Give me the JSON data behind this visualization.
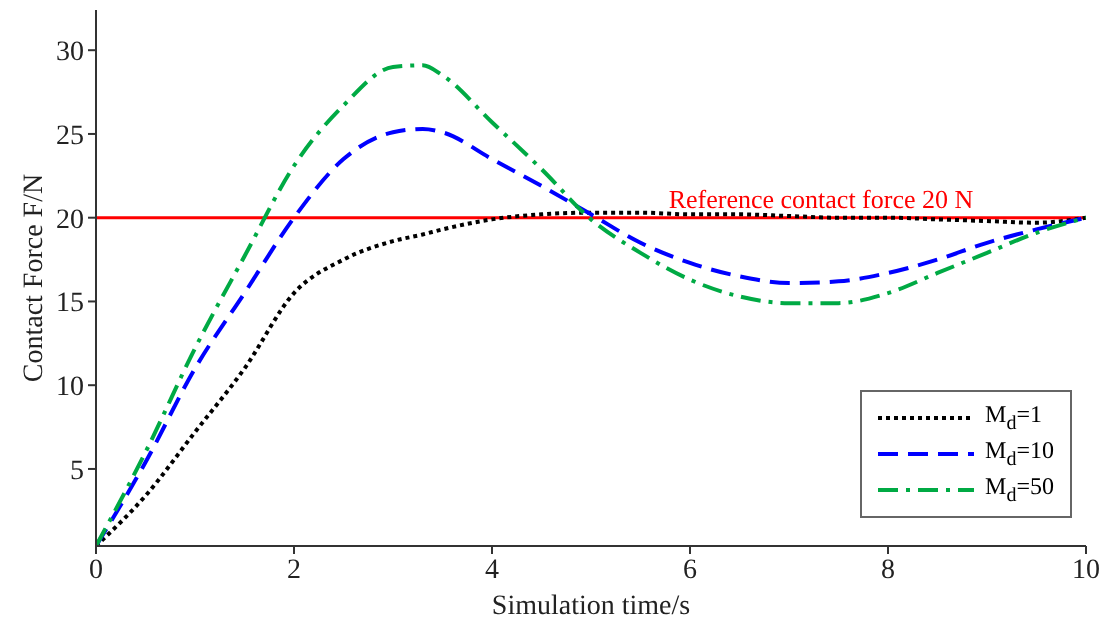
{
  "chart_data": {
    "type": "line",
    "xlabel": "Simulation time/s",
    "ylabel": "Contact Force F/N",
    "xlim": [
      0,
      10
    ],
    "xticks": [
      0,
      2,
      4,
      6,
      8,
      10
    ],
    "ylim": [
      0.4,
      32.4
    ],
    "yticks": [
      5,
      10,
      15,
      20,
      25,
      30
    ],
    "grid": false,
    "legend": "bottom right",
    "marker": "none",
    "x": [
      0,
      0.5,
      1,
      1.5,
      2,
      2.5,
      3,
      3.3,
      3.5,
      4,
      4.5,
      5,
      5.5,
      6,
      6.5,
      7,
      7.5,
      8,
      8.5,
      9,
      9.5,
      10
    ],
    "series": [
      {
        "name": "M$_{d}$=1",
        "color": "#000000",
        "line_style": "dotted",
        "values": [
          0.4,
          3.4,
          7.2,
          11.0,
          15.5,
          17.5,
          18.6,
          19.0,
          19.3,
          19.9,
          20.2,
          20.3,
          20.3,
          20.2,
          20.2,
          20.1,
          20.0,
          20.0,
          19.9,
          19.8,
          19.7,
          20.0
        ]
      },
      {
        "name": "M$_{d}$=10",
        "color": "#0000ff",
        "line_style": "dashed",
        "values": [
          0.4,
          5.4,
          11.0,
          15.5,
          20.0,
          23.5,
          25.1,
          25.3,
          25.1,
          23.5,
          21.9,
          20.2,
          18.5,
          17.3,
          16.5,
          16.1,
          16.2,
          16.7,
          17.5,
          18.5,
          19.3,
          20.0
        ]
      },
      {
        "name": "M$_{d}$=50",
        "color": "#00aa44",
        "line_style": "dashdot",
        "values": [
          0.4,
          6.0,
          12.2,
          17.7,
          23.1,
          26.7,
          29.0,
          29.1,
          28.5,
          25.7,
          22.9,
          19.9,
          17.9,
          16.3,
          15.3,
          14.9,
          14.9,
          15.5,
          16.7,
          17.9,
          19.1,
          20.0
        ]
      }
    ],
    "ref_lines": [
      {
        "axis": "y",
        "value": 20,
        "label": "Reference contact force 20 N",
        "color": "#ff0000",
        "line_style": "solid"
      }
    ]
  }
}
